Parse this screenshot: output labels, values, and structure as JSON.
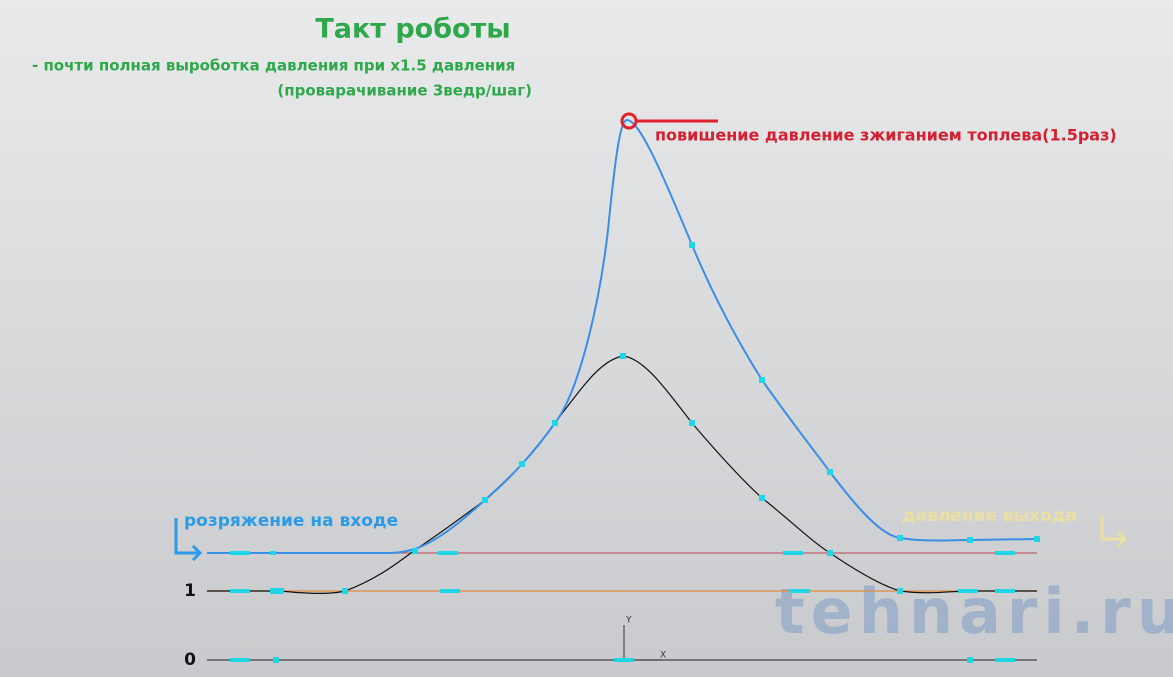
{
  "header": {
    "title": "Такт роботы",
    "subtitle": [
      "- почти полная выроботка давления при x1.5 давления",
      "(проварачивание 3ведр/шаг)"
    ]
  },
  "annotations": {
    "peak": "повишение давление зжиганием топлева(1.5раз)",
    "inlet": "розряжение на входе",
    "outlet": "давление выхода"
  },
  "levels": {
    "one": "1",
    "zero": "0"
  },
  "axes": {
    "y": "Y",
    "x": "X"
  },
  "watermark": "tehnari.ru"
}
